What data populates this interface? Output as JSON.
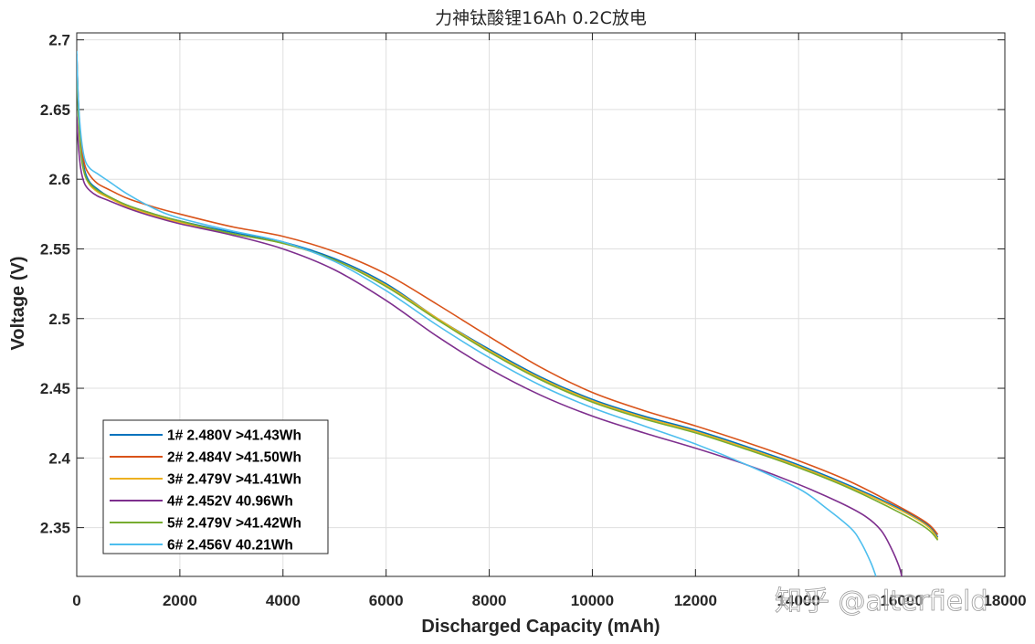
{
  "chart_data": {
    "type": "line",
    "title": "力神钛酸锂16Ah 0.2C放电",
    "xlabel": "Discharged Capacity (mAh)",
    "ylabel": "Voltage (V)",
    "xlim": [
      0,
      18000
    ],
    "ylim": [
      2.315,
      2.705
    ],
    "xticks": [
      0,
      2000,
      4000,
      6000,
      8000,
      10000,
      12000,
      14000,
      16000,
      18000
    ],
    "xtick_labels": [
      "0",
      "2000",
      "4000",
      "6000",
      "8000",
      "10000",
      "12000",
      "14000",
      "16000",
      "18000"
    ],
    "yticks": [
      2.35,
      2.4,
      2.45,
      2.5,
      2.55,
      2.6,
      2.65,
      2.7
    ],
    "ytick_labels": [
      "2.35",
      "2.4",
      "2.45",
      "2.5",
      "2.55",
      "2.6",
      "2.65",
      "2.7"
    ],
    "grid": true,
    "legend_position": "bottom-left",
    "watermark": "知乎 @alterfield",
    "series": [
      {
        "name": "1# 2.480V >41.43Wh",
        "color": "#0072BD",
        "x": [
          0,
          30,
          80,
          150,
          250,
          400,
          600,
          1000,
          1500,
          2000,
          3000,
          4000,
          5000,
          6000,
          7000,
          8000,
          9000,
          10000,
          11000,
          12000,
          13000,
          14000,
          15000,
          16000,
          16500,
          16700
        ],
        "y": [
          2.69,
          2.655,
          2.625,
          2.607,
          2.598,
          2.593,
          2.588,
          2.581,
          2.575,
          2.57,
          2.562,
          2.555,
          2.543,
          2.525,
          2.5,
          2.478,
          2.458,
          2.442,
          2.43,
          2.42,
          2.408,
          2.395,
          2.38,
          2.363,
          2.352,
          2.343
        ]
      },
      {
        "name": "2# 2.484V >41.50Wh",
        "color": "#D95319",
        "x": [
          0,
          30,
          80,
          150,
          250,
          400,
          600,
          1000,
          1500,
          2000,
          3000,
          4000,
          5000,
          6000,
          7000,
          8000,
          9000,
          10000,
          11000,
          12000,
          13000,
          14000,
          15000,
          16000,
          16500,
          16700
        ],
        "y": [
          2.69,
          2.657,
          2.628,
          2.611,
          2.603,
          2.597,
          2.593,
          2.586,
          2.58,
          2.575,
          2.566,
          2.559,
          2.548,
          2.532,
          2.51,
          2.487,
          2.465,
          2.447,
          2.434,
          2.423,
          2.411,
          2.398,
          2.383,
          2.364,
          2.353,
          2.345
        ]
      },
      {
        "name": "3# 2.479V >41.41Wh",
        "color": "#EDB120",
        "x": [
          0,
          30,
          80,
          150,
          250,
          400,
          600,
          1000,
          1500,
          2000,
          3000,
          4000,
          5000,
          6000,
          7000,
          8000,
          9000,
          10000,
          11000,
          12000,
          13000,
          14000,
          15000,
          16000,
          16500,
          16700
        ],
        "y": [
          2.688,
          2.65,
          2.62,
          2.604,
          2.596,
          2.591,
          2.587,
          2.58,
          2.574,
          2.569,
          2.561,
          2.554,
          2.542,
          2.524,
          2.5,
          2.477,
          2.457,
          2.441,
          2.429,
          2.419,
          2.407,
          2.394,
          2.379,
          2.362,
          2.351,
          2.342
        ]
      },
      {
        "name": "4# 2.452V 40.96Wh",
        "color": "#7E2F8E",
        "x": [
          0,
          30,
          80,
          150,
          250,
          400,
          600,
          1000,
          1500,
          2000,
          3000,
          4000,
          5000,
          6000,
          7000,
          8000,
          9000,
          10000,
          11000,
          12000,
          13000,
          14000,
          14800,
          15300,
          15600,
          15800,
          15950,
          16000
        ],
        "y": [
          2.645,
          2.625,
          2.607,
          2.597,
          2.592,
          2.588,
          2.585,
          2.579,
          2.573,
          2.568,
          2.56,
          2.55,
          2.535,
          2.513,
          2.487,
          2.464,
          2.445,
          2.43,
          2.418,
          2.407,
          2.395,
          2.381,
          2.368,
          2.358,
          2.348,
          2.335,
          2.322,
          2.315
        ]
      },
      {
        "name": "5# 2.479V >41.42Wh",
        "color": "#77AC30",
        "x": [
          0,
          30,
          80,
          150,
          250,
          400,
          600,
          1000,
          1500,
          2000,
          3000,
          4000,
          5000,
          6000,
          7000,
          8000,
          9000,
          10000,
          11000,
          12000,
          13000,
          14000,
          15000,
          16000,
          16500,
          16700
        ],
        "y": [
          2.686,
          2.648,
          2.619,
          2.604,
          2.597,
          2.592,
          2.588,
          2.581,
          2.575,
          2.57,
          2.561,
          2.554,
          2.542,
          2.523,
          2.499,
          2.476,
          2.456,
          2.44,
          2.428,
          2.418,
          2.406,
          2.393,
          2.378,
          2.36,
          2.349,
          2.341
        ]
      },
      {
        "name": "6# 2.456V 40.21Wh",
        "color": "#4DBEEE",
        "x": [
          0,
          30,
          80,
          150,
          250,
          400,
          600,
          1000,
          1500,
          2000,
          3000,
          4000,
          5000,
          6000,
          7000,
          8000,
          9000,
          10000,
          11000,
          12000,
          13000,
          14000,
          14500,
          15000,
          15200,
          15400,
          15500
        ],
        "y": [
          2.692,
          2.658,
          2.632,
          2.615,
          2.608,
          2.604,
          2.599,
          2.589,
          2.579,
          2.572,
          2.563,
          2.555,
          2.541,
          2.52,
          2.495,
          2.472,
          2.452,
          2.436,
          2.423,
          2.41,
          2.395,
          2.378,
          2.365,
          2.35,
          2.34,
          2.325,
          2.315
        ]
      }
    ]
  }
}
